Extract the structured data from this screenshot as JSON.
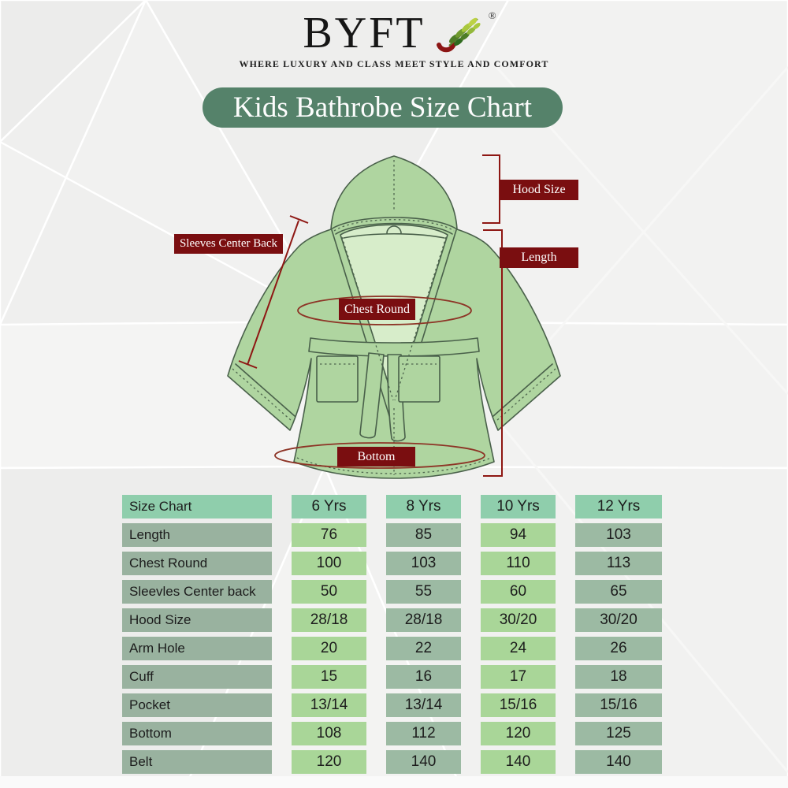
{
  "brand": {
    "name": "BYFT",
    "registered": "®",
    "tagline": "WHERE LUXURY AND CLASS MEET STYLE AND COMFORT"
  },
  "title": "Kids Bathrobe Size Chart",
  "diagram": {
    "labels": {
      "hood_size": "Hood Size",
      "length": "Length",
      "sleeves_center_back": "Sleeves Center Back",
      "chest_round": "Chest Round",
      "bottom": "Bottom"
    }
  },
  "chart_data": {
    "type": "table",
    "title": "Kids Bathrobe Size Chart",
    "columns": [
      "Size Chart",
      "6 Yrs",
      "8 Yrs",
      "10 Yrs",
      "12 Yrs"
    ],
    "rows": [
      {
        "label": "Length",
        "values": [
          "76",
          "85",
          "94",
          "103"
        ]
      },
      {
        "label": "Chest Round",
        "values": [
          "100",
          "103",
          "110",
          "113"
        ]
      },
      {
        "label": "Sleevles Center back",
        "values": [
          "50",
          "55",
          "60",
          "65"
        ]
      },
      {
        "label": "Hood Size",
        "values": [
          "28/18",
          "28/18",
          "30/20",
          "30/20"
        ]
      },
      {
        "label": "Arm Hole",
        "values": [
          "20",
          "22",
          "24",
          "26"
        ]
      },
      {
        "label": "Cuff",
        "values": [
          "15",
          "16",
          "17",
          "18"
        ]
      },
      {
        "label": "Pocket",
        "values": [
          "13/14",
          "13/14",
          "15/16",
          "15/16"
        ]
      },
      {
        "label": "Bottom",
        "values": [
          "108",
          "112",
          "120",
          "125"
        ]
      },
      {
        "label": "Belt",
        "values": [
          "120",
          "140",
          "140",
          "140"
        ]
      }
    ]
  },
  "colors": {
    "maroon": "#7a0e10",
    "measure": "#8e1713",
    "ellipse": "#8d3426",
    "pill": "#55826a",
    "hcell": "#8fceac",
    "lcell": "#99b29f",
    "cellLight": "#a9d698",
    "cellSage": "#9cbaa3",
    "robe": "#afd5a0",
    "robeLine": "#49604a",
    "robeInner": "#d7edca"
  }
}
